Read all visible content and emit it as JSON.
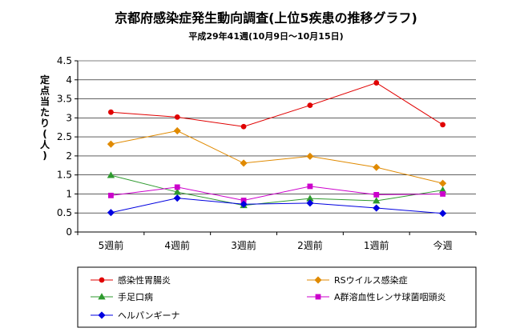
{
  "chart_data": {
    "type": "line",
    "title": "京都府感染症発生動向調査(上位5疾患の推移グラフ)",
    "subtitle": "平成29年41週(10月9日～10月15日)",
    "ylabel": "定点当たり(人)",
    "xlabel": "",
    "categories": [
      "5週前",
      "4週前",
      "3週前",
      "2週前",
      "1週前",
      "今週"
    ],
    "ylim": [
      0,
      4.5
    ],
    "yticks": [
      "0",
      "0.5",
      "1",
      "1.5",
      "2",
      "2.5",
      "3",
      "3.5",
      "4",
      "4.5"
    ],
    "grid": true,
    "legend_position": "bottom",
    "series": [
      {
        "name": "感染性胃腸炎",
        "values": [
          3.15,
          3.02,
          2.77,
          3.33,
          3.92,
          2.82
        ],
        "color": "#e00000",
        "marker": "circle"
      },
      {
        "name": "RSウイルス感染症",
        "values": [
          2.31,
          2.66,
          1.81,
          1.99,
          1.7,
          1.28
        ],
        "color": "#e08a00",
        "marker": "diamond"
      },
      {
        "name": "手足口病",
        "values": [
          1.49,
          1.05,
          0.7,
          0.88,
          0.82,
          1.1
        ],
        "color": "#2e9a2e",
        "marker": "triangle"
      },
      {
        "name": "A群溶血性レンサ球菌咽頭炎",
        "values": [
          0.96,
          1.18,
          0.83,
          1.2,
          0.98,
          1.0
        ],
        "color": "#cc00cc",
        "marker": "square"
      },
      {
        "name": "ヘルパンギーナ",
        "values": [
          0.51,
          0.89,
          0.73,
          0.76,
          0.63,
          0.49
        ],
        "color": "#0000e0",
        "marker": "diamond"
      }
    ]
  }
}
